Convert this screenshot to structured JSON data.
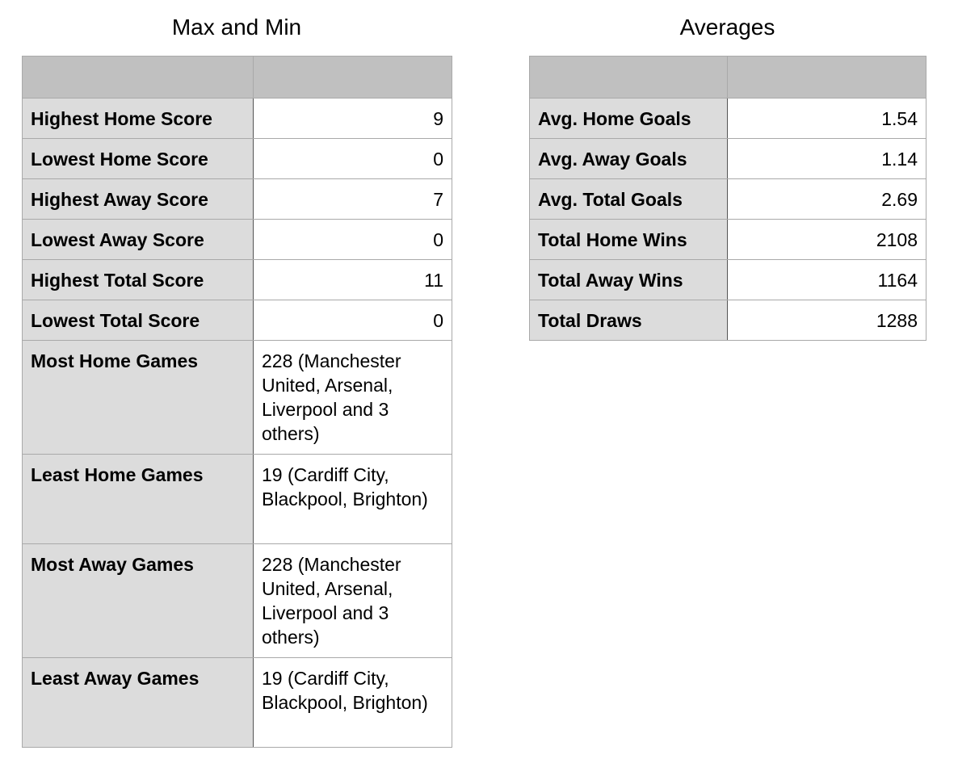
{
  "max_min": {
    "title": "Max and Min",
    "header": [
      "",
      ""
    ],
    "rows": [
      {
        "label": "Highest Home Score",
        "value": "9"
      },
      {
        "label": "Lowest Home Score",
        "value": "0"
      },
      {
        "label": "Highest Away Score",
        "value": "7"
      },
      {
        "label": "Lowest Away Score",
        "value": "0"
      },
      {
        "label": "Highest Total Score",
        "value": "11"
      },
      {
        "label": "Lowest Total Score",
        "value": "0"
      },
      {
        "label": "Most Home Games",
        "value": "228 (Manchester United, Arsenal, Liverpool and 3 others)"
      },
      {
        "label": "Least Home Games",
        "value": "19 (Cardiff City, Blackpool, Brighton)"
      },
      {
        "label": "Most Away Games",
        "value": "228 (Manchester United, Arsenal, Liverpool and 3 others)"
      },
      {
        "label": "Least Away Games",
        "value": "19 (Cardiff City, Blackpool, Brighton)"
      }
    ]
  },
  "averages": {
    "title": "Averages",
    "header": [
      "",
      ""
    ],
    "rows": [
      {
        "label": "Avg. Home Goals",
        "value": "1.54"
      },
      {
        "label": "Avg. Away Goals",
        "value": "1.14"
      },
      {
        "label": "Avg. Total Goals",
        "value": "2.69"
      },
      {
        "label": "Total Home Wins",
        "value": "2108"
      },
      {
        "label": "Total Away Wins",
        "value": "1164"
      },
      {
        "label": "Total Draws",
        "value": "1288"
      }
    ]
  }
}
